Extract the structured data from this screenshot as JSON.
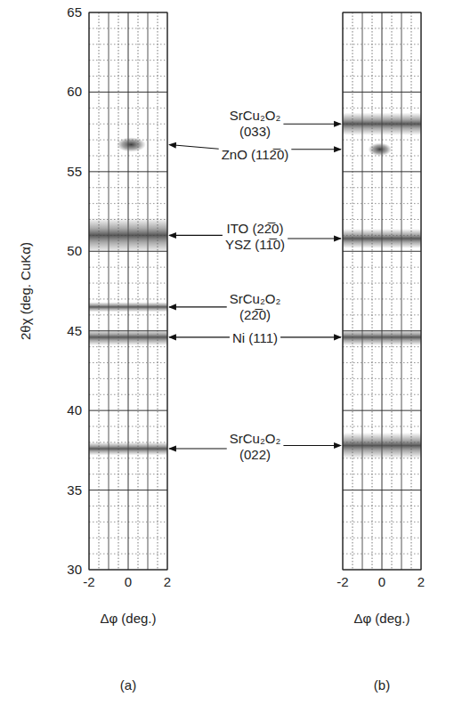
{
  "chart_data": [
    {
      "type": "map",
      "title": "(a)",
      "xlabel": "Δφ (deg.)",
      "ylabel": "2θχ (deg. CuKα)",
      "xlim": [
        -2,
        2
      ],
      "ylim": [
        30,
        65
      ],
      "xticks": [
        -2,
        0,
        2
      ],
      "yticks": [
        30,
        35,
        40,
        45,
        50,
        55,
        60,
        65
      ],
      "grid": true,
      "peaks": [
        {
          "label": [
            "ZnO (112̅0)"
          ],
          "y": 56.7,
          "width": 0.7,
          "x_range": [
            -0.6,
            0.9
          ],
          "marker": "spot"
        },
        {
          "label": [
            "ITO (22̅0)",
            "YSZ (11̅0)"
          ],
          "y": 51.0,
          "width": 2.0,
          "x_range": [
            -2,
            2
          ],
          "marker": "band"
        },
        {
          "label": [
            "SrCu₂O₂",
            "(22̅0)"
          ],
          "y": 46.5,
          "width": 0.4,
          "x_range": [
            -2,
            2
          ],
          "marker": "band"
        },
        {
          "label": [
            "Ni (111)"
          ],
          "y": 44.6,
          "width": 0.8,
          "x_range": [
            -2,
            2
          ],
          "marker": "band"
        },
        {
          "label": [
            "SrCu₂O₂",
            "(022)"
          ],
          "y": 37.6,
          "width": 0.6,
          "x_range": [
            -2,
            2
          ],
          "marker": "band"
        }
      ]
    },
    {
      "type": "map",
      "title": "(b)",
      "xlabel": "Δφ (deg.)",
      "xlim": [
        -2,
        2
      ],
      "ylim": [
        30,
        65
      ],
      "xticks": [
        -2,
        0,
        2
      ],
      "yticks": [
        30,
        35,
        40,
        45,
        50,
        55,
        60,
        65
      ],
      "grid": true,
      "tick_labels": "x",
      "peaks": [
        {
          "label": [
            "SrCu₂O₂",
            "(033)"
          ],
          "y": 58.0,
          "width": 1.2,
          "x_range": [
            -2,
            2
          ],
          "marker": "band"
        },
        {
          "label": [
            "ZnO (112̅0)"
          ],
          "y": 56.4,
          "width": 0.6,
          "x_range": [
            -0.7,
            0.5
          ],
          "marker": "spot"
        },
        {
          "label": [
            "ITO (22̅0)",
            "YSZ (11̅0)"
          ],
          "y": 50.8,
          "width": 1.0,
          "x_range": [
            -2,
            2
          ],
          "marker": "band"
        },
        {
          "label": [
            "Ni (111)"
          ],
          "y": 44.6,
          "width": 0.8,
          "x_range": [
            -2,
            2
          ],
          "marker": "band"
        },
        {
          "label": [
            "SrCu₂O₂",
            "(022)"
          ],
          "y": 37.8,
          "width": 1.4,
          "x_range": [
            -2,
            2
          ],
          "marker": "band"
        }
      ]
    }
  ]
}
